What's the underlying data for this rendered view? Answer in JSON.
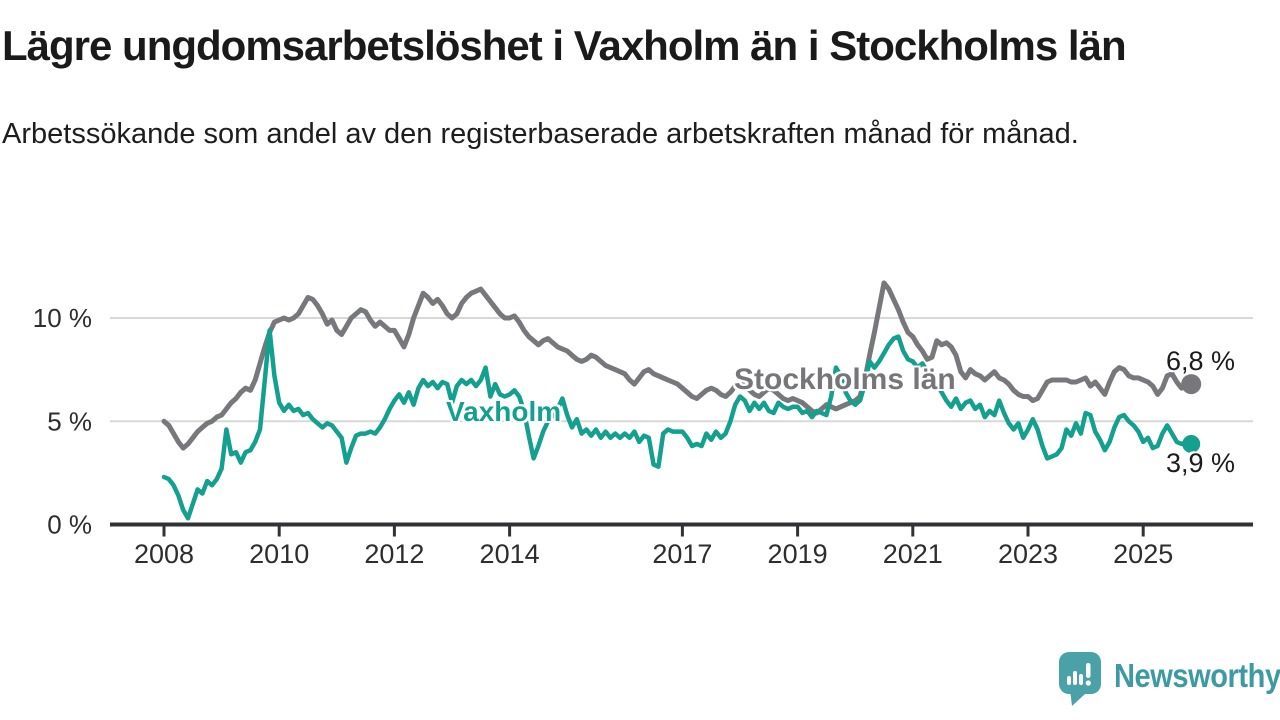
{
  "header": {
    "title": "Lägre ungdomsarbetslöshet i Vaxholm än i Stockholms län",
    "subtitle": "Arbetssökande som andel av den registerbaserade arbetskraften månad för månad."
  },
  "footer": {
    "brand": "Newsworthy",
    "logo_icon": "speech-bubble-bar-chart"
  },
  "colors": {
    "stockholm_line": "#77787c",
    "vaxholm_line": "#14a08f",
    "axis": "#303235",
    "gridline": "#d8d8d8",
    "logo_teal": "#4aa1a8"
  },
  "chart_data": {
    "type": "line",
    "unit": "%",
    "frequency": "monthly",
    "start": "2008-01",
    "end": "2025-11",
    "grid": "horizontal-only",
    "legend_position": "inline-labels",
    "ylim": [
      0,
      12
    ],
    "x_tick_years": [
      2008,
      2010,
      2012,
      2014,
      2017,
      2019,
      2021,
      2023,
      2025
    ],
    "y_ticks": [
      {
        "v": 0,
        "label": "0 %"
      },
      {
        "v": 5,
        "label": "5 %"
      },
      {
        "v": 10,
        "label": "10 %"
      }
    ],
    "series": [
      {
        "name": "Stockholms län",
        "color": "#77787c",
        "end_label": "6,8 %",
        "end_value": 6.8,
        "values": [
          5.0,
          4.8,
          4.4,
          4.0,
          3.7,
          3.9,
          4.2,
          4.5,
          4.7,
          4.9,
          5.0,
          5.2,
          5.3,
          5.6,
          5.9,
          6.1,
          6.4,
          6.6,
          6.5,
          7.0,
          7.8,
          8.6,
          9.3,
          9.8,
          9.9,
          10.0,
          9.9,
          10.0,
          10.2,
          10.6,
          11.0,
          10.9,
          10.6,
          10.2,
          9.7,
          9.9,
          9.4,
          9.2,
          9.6,
          10.0,
          10.2,
          10.4,
          10.3,
          9.9,
          9.6,
          9.8,
          9.6,
          9.4,
          9.4,
          9.0,
          8.6,
          9.2,
          10.0,
          10.6,
          11.2,
          11.0,
          10.7,
          10.9,
          10.6,
          10.2,
          10.0,
          10.2,
          10.7,
          11.0,
          11.2,
          11.3,
          11.4,
          11.1,
          10.8,
          10.5,
          10.2,
          10.0,
          10.0,
          10.1,
          9.8,
          9.4,
          9.1,
          8.9,
          8.7,
          8.9,
          9.0,
          8.8,
          8.6,
          8.5,
          8.4,
          8.2,
          8.0,
          7.9,
          8.0,
          8.2,
          8.1,
          7.9,
          7.7,
          7.6,
          7.5,
          7.4,
          7.3,
          7.0,
          6.8,
          7.1,
          7.4,
          7.5,
          7.3,
          7.2,
          7.1,
          7.0,
          6.9,
          6.8,
          6.6,
          6.4,
          6.2,
          6.1,
          6.3,
          6.5,
          6.6,
          6.5,
          6.3,
          6.2,
          6.4,
          6.7,
          6.9,
          6.7,
          6.5,
          6.3,
          6.2,
          6.4,
          6.6,
          6.5,
          6.3,
          6.1,
          6.0,
          6.1,
          6.0,
          5.9,
          5.7,
          5.5,
          5.4,
          5.6,
          5.8,
          5.7,
          5.6,
          5.7,
          5.8,
          5.9,
          6.0,
          6.2,
          7.0,
          8.2,
          9.3,
          10.5,
          11.7,
          11.4,
          10.9,
          10.4,
          9.8,
          9.3,
          9.1,
          8.7,
          8.4,
          8.0,
          8.1,
          8.9,
          8.7,
          8.8,
          8.6,
          8.2,
          7.4,
          7.1,
          7.5,
          7.3,
          7.2,
          7.0,
          7.2,
          7.4,
          7.1,
          7.0,
          6.8,
          6.5,
          6.3,
          6.2,
          6.2,
          6.0,
          6.1,
          6.5,
          6.9,
          7.0,
          7.0,
          7.0,
          7.0,
          6.9,
          6.9,
          7.0,
          7.1,
          6.7,
          6.9,
          6.6,
          6.3,
          6.9,
          7.4,
          7.6,
          7.5,
          7.2,
          7.1,
          7.1,
          7.0,
          6.9,
          6.7,
          6.3,
          6.6,
          7.2,
          7.3,
          6.9,
          6.6,
          7.0,
          6.8
        ]
      },
      {
        "name": "Vaxholm",
        "color": "#14a08f",
        "end_label": "3,9 %",
        "end_value": 3.9,
        "values": [
          2.3,
          2.2,
          1.9,
          1.4,
          0.7,
          0.3,
          1.0,
          1.7,
          1.5,
          2.1,
          1.9,
          2.2,
          2.7,
          4.6,
          3.4,
          3.5,
          3.0,
          3.5,
          3.6,
          4.0,
          4.6,
          7.0,
          9.4,
          7.2,
          5.9,
          5.5,
          5.8,
          5.5,
          5.6,
          5.3,
          5.4,
          5.1,
          4.9,
          4.7,
          4.9,
          4.8,
          4.5,
          4.2,
          3.0,
          3.7,
          4.3,
          4.4,
          4.4,
          4.5,
          4.4,
          4.7,
          5.1,
          5.6,
          6.0,
          6.3,
          5.9,
          6.4,
          5.8,
          6.6,
          7.0,
          6.7,
          6.9,
          6.6,
          6.9,
          6.8,
          5.9,
          6.7,
          7.0,
          6.8,
          7.0,
          6.7,
          7.0,
          7.6,
          6.2,
          6.8,
          6.3,
          6.2,
          6.3,
          6.5,
          6.2,
          5.5,
          4.3,
          3.2,
          3.8,
          4.5,
          5.0,
          5.3,
          5.6,
          6.1,
          5.3,
          4.7,
          5.1,
          4.4,
          4.6,
          4.3,
          4.6,
          4.2,
          4.5,
          4.2,
          4.4,
          4.2,
          4.4,
          4.2,
          4.5,
          4.0,
          4.3,
          4.2,
          2.9,
          2.8,
          4.4,
          4.6,
          4.5,
          4.5,
          4.5,
          4.2,
          3.8,
          3.9,
          3.8,
          4.4,
          4.1,
          4.5,
          4.2,
          4.4,
          5.0,
          5.8,
          6.2,
          6.0,
          5.5,
          5.9,
          5.6,
          5.9,
          5.5,
          5.4,
          5.9,
          5.7,
          5.6,
          5.7,
          5.7,
          5.4,
          5.5,
          5.2,
          5.5,
          5.4,
          5.3,
          6.2,
          7.6,
          7.2,
          6.4,
          6.0,
          5.8,
          6.0,
          6.8,
          7.9,
          7.6,
          7.9,
          8.3,
          8.7,
          9.0,
          9.1,
          8.4,
          8.0,
          7.9,
          7.6,
          7.8,
          7.4,
          7.1,
          6.8,
          6.4,
          6.0,
          5.7,
          6.1,
          5.6,
          5.9,
          6.0,
          5.6,
          5.8,
          5.2,
          5.5,
          5.3,
          6.0,
          5.4,
          4.9,
          4.6,
          4.9,
          4.2,
          4.6,
          5.1,
          4.6,
          3.8,
          3.2,
          3.3,
          3.4,
          3.7,
          4.6,
          4.3,
          4.9,
          4.4,
          5.4,
          5.3,
          4.5,
          4.1,
          3.6,
          4.0,
          4.7,
          5.2,
          5.3,
          5.0,
          4.8,
          4.5,
          4.0,
          4.2,
          3.7,
          3.8,
          4.4,
          4.8,
          4.4,
          4.0,
          3.9,
          4.0,
          3.9
        ]
      }
    ]
  }
}
